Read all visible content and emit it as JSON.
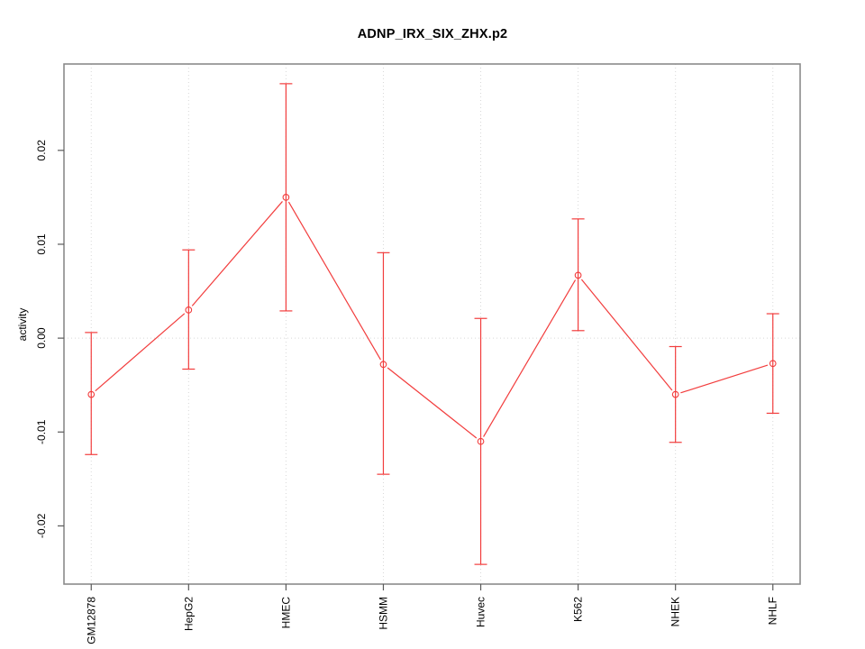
{
  "title": "ADNP_IRX_SIX_ZHX.p2",
  "chart_data": {
    "type": "line",
    "title": "ADNP_IRX_SIX_ZHX.p2",
    "xlabel": "",
    "ylabel": "activity",
    "categories": [
      "GM12878",
      "HepG2",
      "HMEC",
      "HSMM",
      "Huvec",
      "K562",
      "NHEK",
      "NHLF"
    ],
    "series": [
      {
        "name": "activity",
        "marker": "open-circle",
        "values": [
          -0.006,
          0.003,
          0.015,
          -0.0028,
          -0.011,
          0.0067,
          -0.006,
          -0.0027
        ],
        "error_high": [
          0.0006,
          0.0094,
          0.0271,
          0.0091,
          0.0021,
          0.0127,
          -0.0009,
          0.0026
        ],
        "error_low": [
          -0.0124,
          -0.0033,
          0.0029,
          -0.0145,
          -0.0241,
          0.0008,
          -0.0111,
          -0.008
        ]
      }
    ],
    "yticks": [
      -0.02,
      -0.01,
      0,
      0.01,
      0.02
    ],
    "ytick_labels": [
      "-0.02",
      "-0.01",
      "0.00",
      "0.01",
      "0.02"
    ],
    "ylim": [
      -0.0262,
      0.0292
    ],
    "grid": {
      "vertical_at_categories": true,
      "horizontal_zero_line": true,
      "style": "dotted"
    },
    "legend": "none",
    "colors": {
      "series": "#f23d3d",
      "grid": "#d8d8d8",
      "axis_box": "#8a8a8a",
      "ticks": "#5a5a5a",
      "tick_text": "#000000"
    }
  }
}
